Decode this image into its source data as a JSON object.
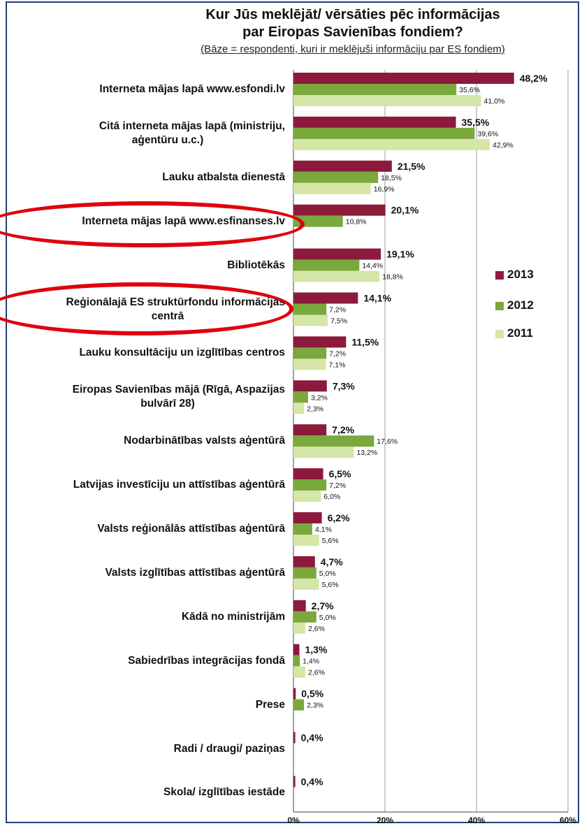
{
  "chart_data": {
    "type": "bar",
    "orientation": "horizontal",
    "title_line1": "Kur Jūs meklējāt/ vērsāties pēc informācijas",
    "title_line2": "par Eiropas Savienības fondiem?",
    "subtitle": "(Bāze = respondenti, kuri ir meklējuši informāciju par ES fondiem)",
    "xlim": [
      0,
      60
    ],
    "x_ticks": [
      "0%",
      "20%",
      "40%",
      "60%"
    ],
    "x_tick_values": [
      0,
      20,
      40,
      60
    ],
    "legend_position": "right",
    "categories": [
      [
        "Interneta mājas lapā www.esfondi.lv"
      ],
      [
        "Citā interneta mājas lapā (ministriju,",
        "aģentūru u.c.)"
      ],
      [
        "Lauku atbalsta dienestā"
      ],
      [
        "Interneta mājas lapā www.esfinanses.lv"
      ],
      [
        "Bibliotēkās"
      ],
      [
        "Reģionālajā ES struktūrfondu informācijas",
        "centrā"
      ],
      [
        "Lauku konsultāciju un izglītības centros"
      ],
      [
        "Eiropas Savienības mājā (Rīgā, Aspazijas",
        "bulvārī 28)"
      ],
      [
        "Nodarbinātības valsts aģentūrā"
      ],
      [
        "Latvijas investīciju un attīstības aģentūrā"
      ],
      [
        "Valsts reģionālās attīstības aģentūrā"
      ],
      [
        "Valsts izglītības attīstības aģentūrā"
      ],
      [
        "Kādā no ministrijām"
      ],
      [
        "Sabiedrības integrācijas fondā"
      ],
      [
        "Prese"
      ],
      [
        "Radi / draugi/ paziņas"
      ],
      [
        "Skola/ izglītības iestāde"
      ]
    ],
    "series": [
      {
        "name": "2013",
        "color": "#8b1a3b",
        "values": [
          48.2,
          35.5,
          21.5,
          20.1,
          19.1,
          14.1,
          11.5,
          7.3,
          7.2,
          6.5,
          6.2,
          4.7,
          2.7,
          1.3,
          0.5,
          0.4,
          0.4
        ],
        "labels": [
          "48,2%",
          "35,5%",
          "21,5%",
          "20,1%",
          "19,1%",
          "14,1%",
          "11,5%",
          "7,3%",
          "7,2%",
          "6,5%",
          "6,2%",
          "4,7%",
          "2,7%",
          "1,3%",
          "0,5%",
          "0,4%",
          "0,4%"
        ]
      },
      {
        "name": "2012",
        "color": "#7aa83c",
        "values": [
          35.6,
          39.6,
          18.5,
          10.8,
          14.4,
          7.2,
          7.2,
          3.2,
          17.6,
          7.2,
          4.1,
          5.0,
          5.0,
          1.4,
          2.3,
          null,
          null
        ],
        "labels": [
          "35,6%",
          "39,6%",
          "18,5%",
          "10,8%",
          "14,4%",
          "7,2%",
          "7,2%",
          "3,2%",
          "17,6%",
          "7,2%",
          "4,1%",
          "5,0%",
          "5,0%",
          "1,4%",
          "2,3%",
          null,
          null
        ]
      },
      {
        "name": "2011",
        "color": "#d4e6a8",
        "values": [
          41.0,
          42.9,
          16.9,
          null,
          18.8,
          7.5,
          7.1,
          2.3,
          13.2,
          6.0,
          5.6,
          5.6,
          2.6,
          2.6,
          null,
          null,
          null
        ],
        "labels": [
          "41,0%",
          "42,9%",
          "16,9%",
          null,
          "18,8%",
          "7,5%",
          "7,1%",
          "2,3%",
          "13,2%",
          "6,0%",
          "5,6%",
          "5,6%",
          "2,6%",
          "2,6%",
          null,
          null,
          null
        ]
      }
    ],
    "highlighted_categories": [
      3,
      5
    ]
  }
}
